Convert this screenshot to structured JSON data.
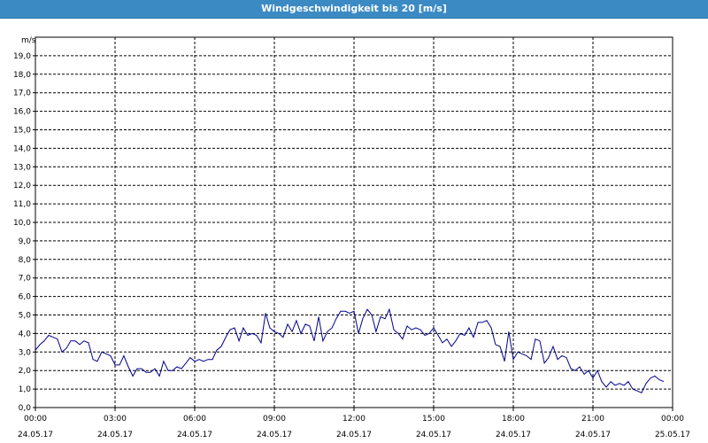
{
  "window": {
    "title": "Windgeschwindigkeit bis 20 [m/s]"
  },
  "chart_data": {
    "type": "line",
    "title": "Windgeschwindigkeit bis 20 [m/s]",
    "ylabel": "m/s",
    "xlabel": "",
    "ylim": [
      0,
      20
    ],
    "grid": true,
    "line_color": "#00008b",
    "y_ticks": [
      "0,0",
      "1,0",
      "2,0",
      "3,0",
      "4,0",
      "5,0",
      "6,0",
      "7,0",
      "8,0",
      "9,0",
      "10,0",
      "11,0",
      "12,0",
      "13,0",
      "14,0",
      "15,0",
      "16,0",
      "17,0",
      "18,0",
      "19,0"
    ],
    "x_ticks": [
      {
        "time": "00:00",
        "date": "24.05.17",
        "hours": 0
      },
      {
        "time": "03:00",
        "date": "24.05.17",
        "hours": 3
      },
      {
        "time": "06:00",
        "date": "24.05.17",
        "hours": 6
      },
      {
        "time": "09:00",
        "date": "24.05.17",
        "hours": 9
      },
      {
        "time": "12:00",
        "date": "24.05.17",
        "hours": 12
      },
      {
        "time": "15:00",
        "date": "24.05.17",
        "hours": 15
      },
      {
        "time": "18:00",
        "date": "24.05.17",
        "hours": 18
      },
      {
        "time": "21:00",
        "date": "24.05.17",
        "hours": 21
      },
      {
        "time": "00:00",
        "date": "25.05.17",
        "hours": 24
      }
    ],
    "series": [
      {
        "x": [
          0,
          0.17,
          0.33,
          0.5,
          0.67,
          0.83,
          1,
          1.17,
          1.33,
          1.5,
          1.67,
          1.83,
          2,
          2.17,
          2.33,
          2.5,
          2.67,
          2.83,
          3,
          3.17,
          3.33,
          3.5,
          3.67,
          3.83,
          4,
          4.17,
          4.33,
          4.5,
          4.67,
          4.83,
          5,
          5.17,
          5.33,
          5.5,
          5.67,
          5.83,
          6,
          6.17,
          6.33,
          6.5,
          6.67,
          6.83,
          7,
          7.17,
          7.33,
          7.5,
          7.67,
          7.83,
          8,
          8.17,
          8.33,
          8.5,
          8.67,
          8.83,
          9,
          9.17,
          9.33,
          9.5,
          9.67,
          9.83,
          10,
          10.17,
          10.33,
          10.5,
          10.67,
          10.83,
          11,
          11.17,
          11.33,
          11.5,
          11.67,
          11.83,
          12,
          12.17,
          12.33,
          12.5,
          12.67,
          12.83,
          13,
          13.17,
          13.33,
          13.5,
          13.67,
          13.83,
          14,
          14.17,
          14.33,
          14.5,
          14.67,
          14.83,
          15,
          15.17,
          15.33,
          15.5,
          15.67,
          15.83,
          16,
          16.17,
          16.33,
          16.5,
          16.67,
          16.83,
          17,
          17.17,
          17.33,
          17.5,
          17.67,
          17.83,
          18,
          18.17,
          18.33,
          18.5,
          18.67,
          18.83,
          19,
          19.17,
          19.33,
          19.5,
          19.67,
          19.83,
          20,
          20.17,
          20.33,
          20.5,
          20.67,
          20.83,
          21,
          21.17,
          21.33,
          21.5,
          21.67,
          21.83,
          22,
          22.17,
          22.33,
          22.5,
          22.67,
          22.83,
          23,
          23.17,
          23.33,
          23.5,
          23.67
        ],
        "y": [
          3.1,
          3.4,
          3.6,
          3.9,
          3.8,
          3.7,
          3.0,
          3.2,
          3.6,
          3.6,
          3.4,
          3.6,
          3.5,
          2.6,
          2.5,
          3.0,
          2.9,
          2.8,
          2.3,
          2.3,
          2.8,
          2.2,
          1.7,
          2.1,
          2.1,
          1.9,
          1.9,
          2.1,
          1.7,
          2.5,
          2.0,
          2.0,
          2.2,
          2.1,
          2.4,
          2.7,
          2.5,
          2.6,
          2.5,
          2.6,
          2.6,
          3.1,
          3.3,
          3.8,
          4.2,
          4.3,
          3.6,
          4.3,
          3.9,
          4.0,
          3.9,
          3.5,
          5.1,
          4.3,
          4.1,
          4.0,
          3.8,
          4.5,
          4.1,
          4.7,
          4.0,
          4.5,
          4.4,
          3.6,
          4.9,
          3.6,
          4.1,
          4.3,
          4.8,
          5.2,
          5.2,
          5.1,
          5.2,
          4.0,
          4.8,
          5.3,
          5.0,
          4.1,
          4.9,
          4.8,
          5.3,
          4.2,
          4.0,
          3.7,
          4.4,
          4.2,
          4.3,
          4.2,
          3.9,
          4.0,
          4.3,
          3.9,
          3.5,
          3.7,
          3.3,
          3.6,
          4.0,
          3.9,
          4.3,
          3.8,
          4.6,
          4.6,
          4.7,
          4.3,
          3.4,
          3.3,
          2.5,
          4.1,
          2.6,
          3.0,
          2.9,
          2.8,
          2.6,
          3.7,
          3.6,
          2.4,
          2.7,
          3.3,
          2.6,
          2.8,
          2.7,
          2.1,
          2.0,
          2.2,
          1.8,
          2.0,
          1.6,
          2.0,
          1.4,
          1.1,
          1.4,
          1.2,
          1.3,
          1.2,
          1.4,
          1.0,
          0.9,
          0.8,
          1.3,
          1.6,
          1.7,
          1.5,
          1.4
        ]
      }
    ]
  }
}
